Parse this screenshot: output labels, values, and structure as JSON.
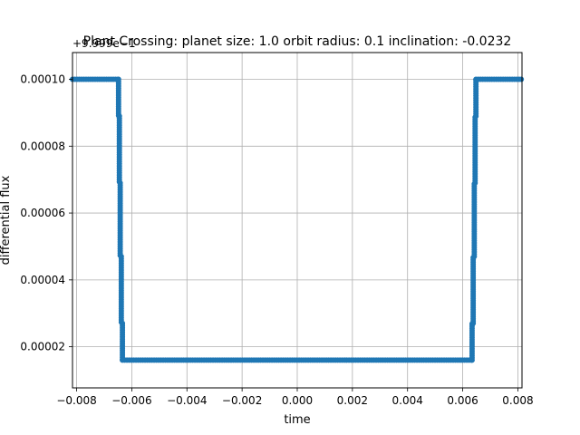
{
  "chart_data": {
    "type": "scatter",
    "title": "Plant Crossing: planet size: 1.0 orbit radius: 0.1 inclination: -0.0232",
    "xlabel": "time",
    "ylabel": "differential flux",
    "y_offset_label": "+9.999e−1",
    "xlim": [
      -0.00815,
      0.00815
    ],
    "ylim": [
      7.7e-06,
      0.000108
    ],
    "x_ticks": [
      -0.008,
      -0.006,
      -0.004,
      -0.002,
      0.0,
      0.002,
      0.004,
      0.006,
      0.008
    ],
    "x_tick_labels": [
      "−0.008",
      "−0.006",
      "−0.004",
      "−0.002",
      "0.000",
      "0.002",
      "0.004",
      "0.006",
      "0.008"
    ],
    "y_ticks": [
      2e-05,
      4e-05,
      6e-05,
      8e-05,
      0.0001
    ],
    "y_tick_labels": [
      "0.00002",
      "0.00004",
      "0.00006",
      "0.00008",
      "0.00010"
    ],
    "grid": true,
    "series": [
      {
        "color": "#1f77b4",
        "marker": "circle",
        "segments": [
          {
            "x_start": -0.00815,
            "x_end": -0.00648,
            "y": 0.0001
          },
          {
            "x": -0.00648,
            "y_start": 0.0001,
            "y_end": 8.9e-05
          },
          {
            "x": -0.00645,
            "y_start": 8.9e-05,
            "y_end": 6.9e-05
          },
          {
            "x": -0.00642,
            "y_start": 6.9e-05,
            "y_end": 4.7e-05
          },
          {
            "x": -0.00638,
            "y_start": 4.7e-05,
            "y_end": 2.7e-05
          },
          {
            "x": -0.00634,
            "y_start": 2.7e-05,
            "y_end": 1.6e-05
          },
          {
            "x_start": -0.00634,
            "x_end": 0.00634,
            "y": 1.6e-05
          },
          {
            "x": 0.00634,
            "y_start": 1.6e-05,
            "y_end": 2.7e-05
          },
          {
            "x": 0.00638,
            "y_start": 2.7e-05,
            "y_end": 4.7e-05
          },
          {
            "x": 0.00642,
            "y_start": 4.7e-05,
            "y_end": 6.9e-05
          },
          {
            "x": 0.00645,
            "y_start": 6.9e-05,
            "y_end": 8.9e-05
          },
          {
            "x": 0.00648,
            "y_start": 8.9e-05,
            "y_end": 0.0001
          },
          {
            "x_start": 0.00648,
            "x_end": 0.00815,
            "y": 0.0001
          }
        ]
      }
    ]
  }
}
